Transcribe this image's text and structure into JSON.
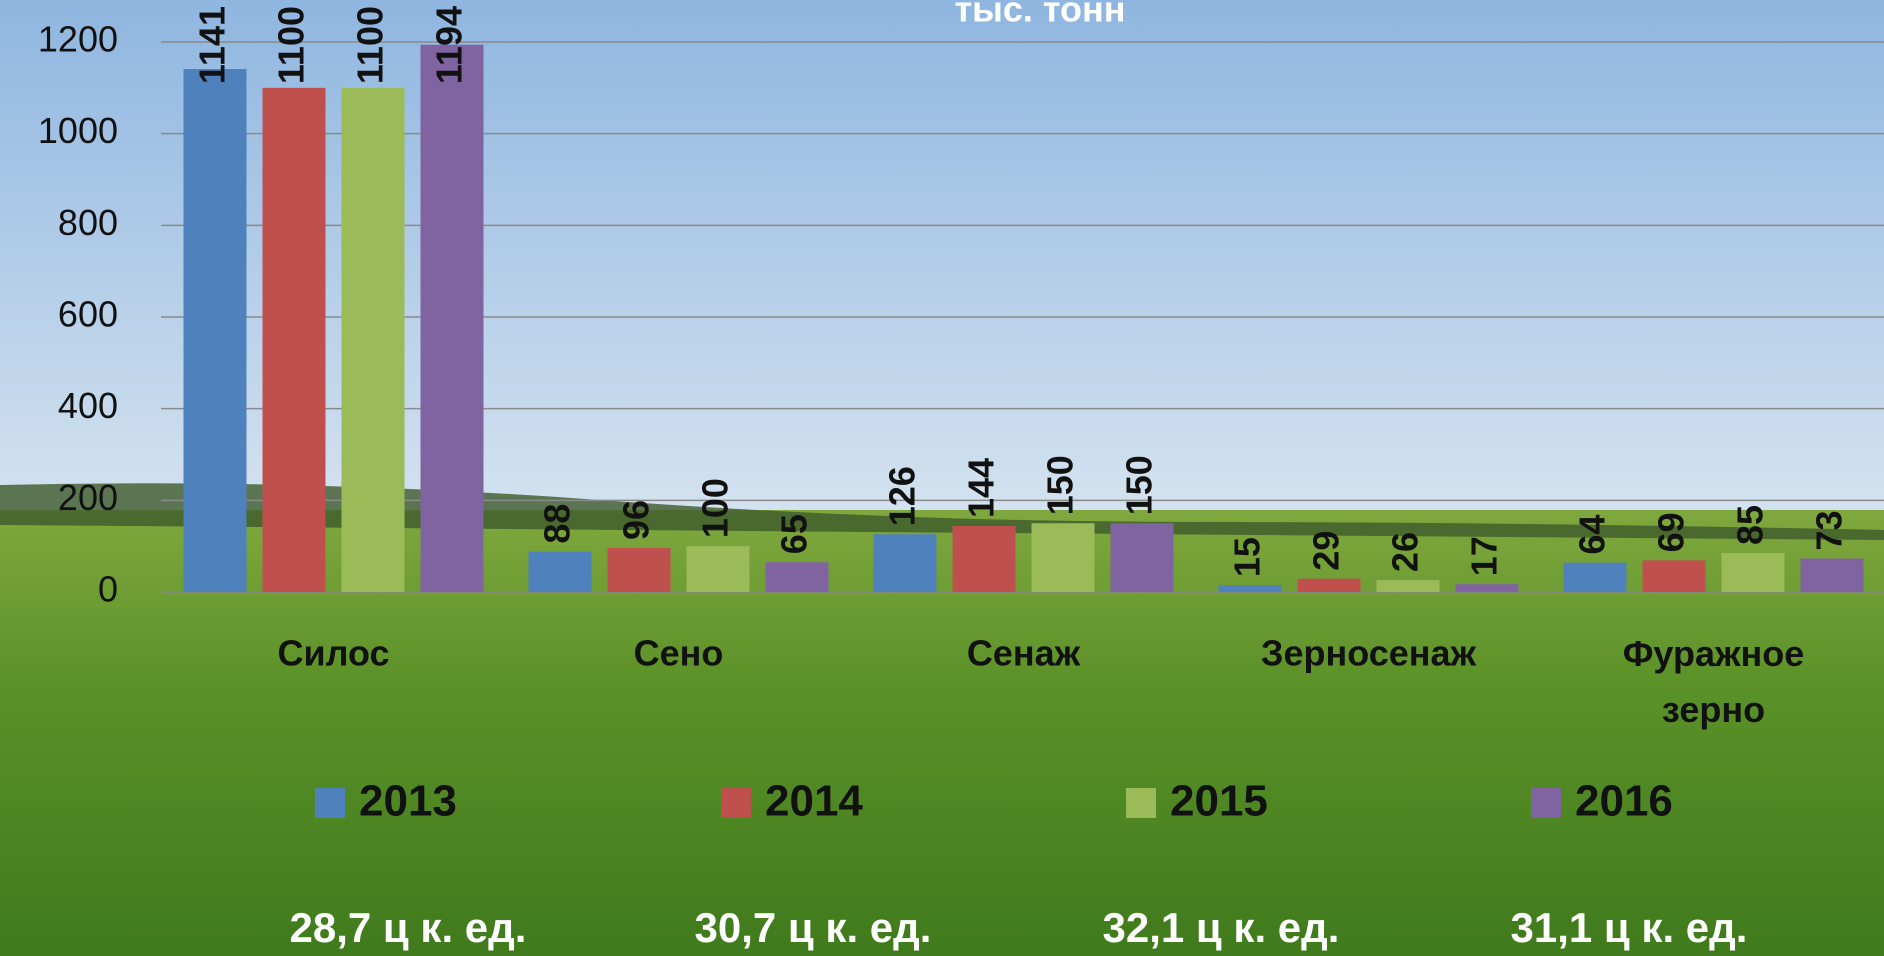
{
  "chart_data": {
    "type": "bar",
    "title": "тыс. тонн",
    "categories": [
      "Силос",
      "Сено",
      "Сенаж",
      "Зерносенаж",
      "Фуражное зерно"
    ],
    "series": [
      {
        "name": "2013",
        "color": "#4f81bd",
        "values": [
          1141,
          88,
          126,
          15,
          64
        ]
      },
      {
        "name": "2014",
        "color": "#c0504d",
        "values": [
          1100,
          96,
          144,
          29,
          69
        ]
      },
      {
        "name": "2015",
        "color": "#9bbb59",
        "values": [
          1100,
          100,
          150,
          26,
          85
        ]
      },
      {
        "name": "2016",
        "color": "#8064a2",
        "values": [
          1194,
          65,
          150,
          17,
          73
        ]
      }
    ],
    "ylim": [
      0,
      1200
    ],
    "yticks": [
      0,
      200,
      400,
      600,
      800,
      1000,
      1200
    ],
    "grid": true,
    "legend": "bottom",
    "annotations": [
      "28,7 ц к. ед.",
      "30,7 ц к. ед.",
      "32,1 ц к. ед.",
      "31,1 ц к. ед."
    ]
  }
}
